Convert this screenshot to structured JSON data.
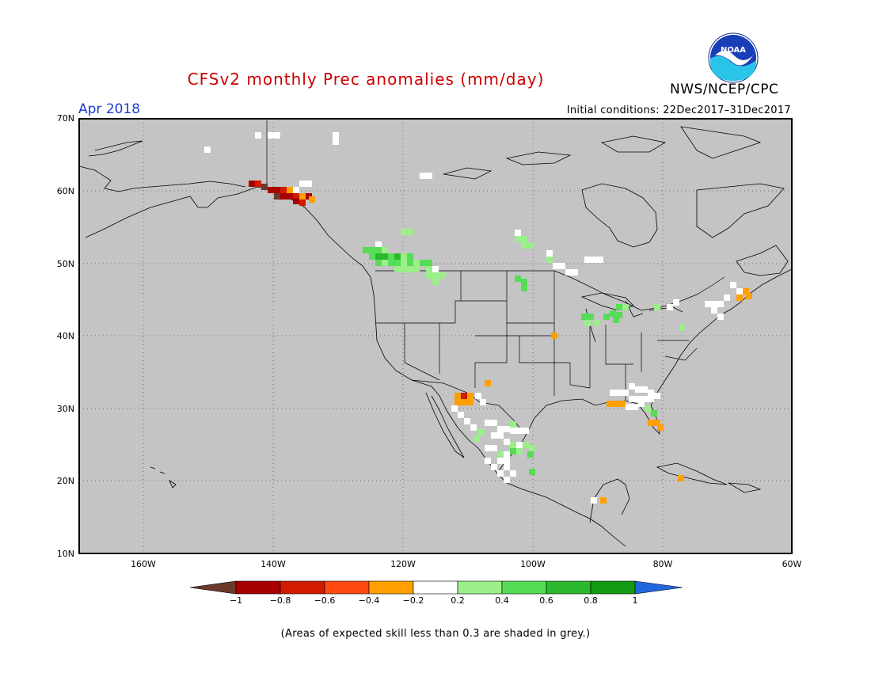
{
  "header": {
    "title": "CFSv2 monthly Prec anomalies (mm/day)",
    "agency": "NWS/NCEP/CPC",
    "logo_text": "NOAA",
    "period": "Apr 2018",
    "initial_conditions": "Initial conditions: 22Dec2017–31Dec2017"
  },
  "map": {
    "lat_labels": [
      "70N",
      "60N",
      "50N",
      "40N",
      "30N",
      "20N",
      "10N"
    ],
    "lon_labels": [
      "160W",
      "140W",
      "120W",
      "100W",
      "80W",
      "60W"
    ],
    "extent": {
      "lon": [
        -170,
        -60
      ],
      "lat": [
        10,
        70
      ]
    },
    "background_color": "#c4c4c4",
    "grid": "dotted"
  },
  "colorbar": {
    "labels": [
      "−1",
      "−0.8",
      "−0.6",
      "−0.4",
      "−0.2",
      "0.2",
      "0.4",
      "0.6",
      "0.8",
      "1"
    ],
    "colors": [
      "#6b3a2a",
      "#a80000",
      "#d11a00",
      "#ff4a10",
      "#ff9f00",
      "#ffffff",
      "#9bee8a",
      "#56dc56",
      "#2cb82c",
      "#139a13",
      "#2266dd"
    ]
  },
  "footnote": "(Areas of expected skill less than 0.3 are shaded in grey.)"
}
